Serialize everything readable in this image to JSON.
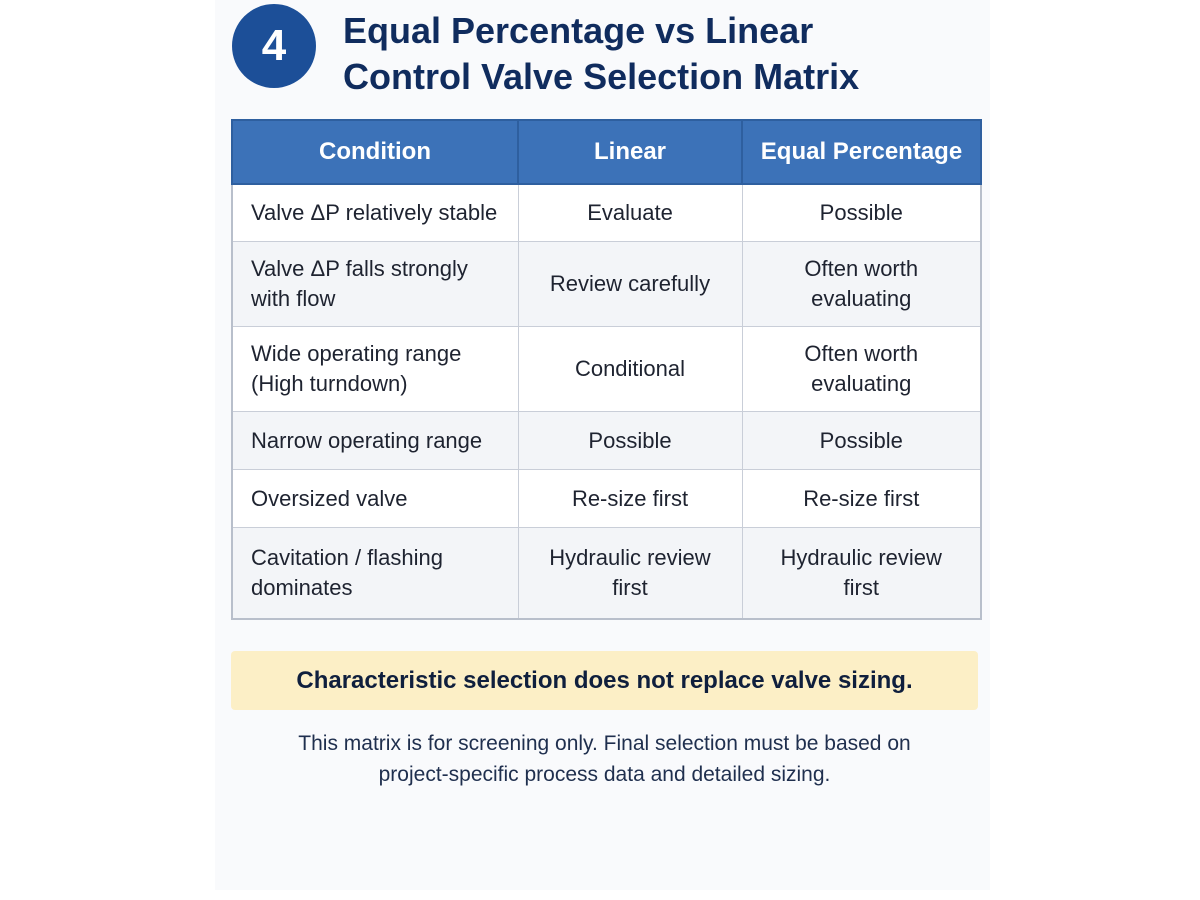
{
  "header": {
    "step_number": "4",
    "title_line1": "Equal Percentage vs Linear",
    "title_line2": "Control Valve Selection Matrix"
  },
  "table": {
    "columns": [
      "Condition",
      "Linear",
      "Equal Percentage"
    ],
    "rows": [
      {
        "condition": [
          "Valve ΔP relatively stable"
        ],
        "linear": [
          "Evaluate"
        ],
        "equal_percentage": [
          "Possible"
        ]
      },
      {
        "condition": [
          "Valve ΔP falls strongly",
          "with flow"
        ],
        "linear": [
          "Review carefully"
        ],
        "equal_percentage": [
          "Often worth",
          "evaluating"
        ]
      },
      {
        "condition": [
          "Wide operating range",
          "(High turndown)"
        ],
        "linear": [
          "Conditional"
        ],
        "equal_percentage": [
          "Often worth",
          "evaluating"
        ]
      },
      {
        "condition": [
          "Narrow operating range"
        ],
        "linear": [
          "Possible"
        ],
        "equal_percentage": [
          "Possible"
        ]
      },
      {
        "condition": [
          "Oversized valve"
        ],
        "linear": [
          "Re-size first"
        ],
        "equal_percentage": [
          "Re-size first"
        ]
      },
      {
        "condition": [
          "Cavitation / flashing",
          "dominates"
        ],
        "linear": [
          "Hydraulic review",
          "first"
        ],
        "equal_percentage": [
          "Hydraulic review",
          "first"
        ]
      }
    ]
  },
  "callout": {
    "text": "Characteristic selection does not replace valve sizing."
  },
  "footnote": {
    "line1": "This matrix is for screening only. Final selection must be based on",
    "line2": "project-specific process data and detailed sizing."
  },
  "colors": {
    "badge": "#1c4f98",
    "title": "#102c5e",
    "table_header": "#3c72b8",
    "callout_background": "#fcefc6"
  }
}
